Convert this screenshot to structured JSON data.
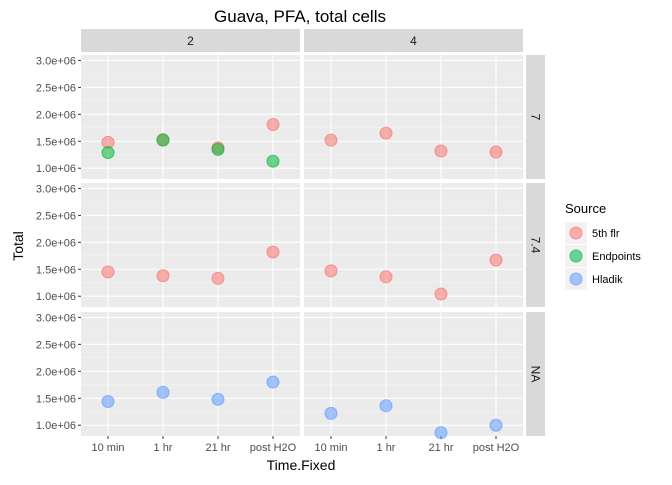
{
  "chart_data": {
    "type": "scatter",
    "title": "Guava, PFA, total cells",
    "xlabel": "Time.Fixed",
    "ylabel": "Total",
    "categories": [
      "10 min",
      "1 hr",
      "21 hr",
      "post H2O"
    ],
    "y_ticks": [
      1000000,
      1500000,
      2000000,
      2500000,
      3000000
    ],
    "y_tick_labels": [
      "1.0e+06",
      "1.5e+06",
      "2.0e+06",
      "2.5e+06",
      "3.0e+06"
    ],
    "ylim": [
      800000,
      3100000
    ],
    "facet_cols": [
      "2",
      "4"
    ],
    "facet_rows": [
      "7",
      "7.4",
      "NA"
    ],
    "legend": {
      "title": "Source",
      "position": "right",
      "items": [
        {
          "name": "5th flr",
          "color": "#F8766D"
        },
        {
          "name": "Endpoints",
          "color": "#00BA38"
        },
        {
          "name": "Hladik",
          "color": "#619CFF"
        }
      ]
    },
    "grid": true,
    "series": [
      {
        "name": "5th flr",
        "color": "#F8766D",
        "points": [
          {
            "col": "2",
            "row": "7",
            "x": "10 min",
            "y": 1480000
          },
          {
            "col": "2",
            "row": "7",
            "x": "1 hr",
            "y": 1530000
          },
          {
            "col": "2",
            "row": "7",
            "x": "21 hr",
            "y": 1380000
          },
          {
            "col": "2",
            "row": "7",
            "x": "post H2O",
            "y": 1810000
          },
          {
            "col": "4",
            "row": "7",
            "x": "10 min",
            "y": 1520000
          },
          {
            "col": "4",
            "row": "7",
            "x": "1 hr",
            "y": 1650000
          },
          {
            "col": "4",
            "row": "7",
            "x": "21 hr",
            "y": 1320000
          },
          {
            "col": "4",
            "row": "7",
            "x": "post H2O",
            "y": 1300000
          },
          {
            "col": "2",
            "row": "7.4",
            "x": "10 min",
            "y": 1450000
          },
          {
            "col": "2",
            "row": "7.4",
            "x": "1 hr",
            "y": 1380000
          },
          {
            "col": "2",
            "row": "7.4",
            "x": "21 hr",
            "y": 1330000
          },
          {
            "col": "2",
            "row": "7.4",
            "x": "post H2O",
            "y": 1820000
          },
          {
            "col": "4",
            "row": "7.4",
            "x": "10 min",
            "y": 1470000
          },
          {
            "col": "4",
            "row": "7.4",
            "x": "1 hr",
            "y": 1360000
          },
          {
            "col": "4",
            "row": "7.4",
            "x": "21 hr",
            "y": 1040000
          },
          {
            "col": "4",
            "row": "7.4",
            "x": "post H2O",
            "y": 1670000
          }
        ]
      },
      {
        "name": "Endpoints",
        "color": "#00BA38",
        "points": [
          {
            "col": "2",
            "row": "7",
            "x": "10 min",
            "y": 1290000
          },
          {
            "col": "2",
            "row": "7",
            "x": "1 hr",
            "y": 1520000
          },
          {
            "col": "2",
            "row": "7",
            "x": "21 hr",
            "y": 1350000
          },
          {
            "col": "2",
            "row": "7",
            "x": "post H2O",
            "y": 1130000
          }
        ]
      },
      {
        "name": "Hladik",
        "color": "#619CFF",
        "points": [
          {
            "col": "2",
            "row": "NA",
            "x": "10 min",
            "y": 1440000
          },
          {
            "col": "2",
            "row": "NA",
            "x": "1 hr",
            "y": 1610000
          },
          {
            "col": "2",
            "row": "NA",
            "x": "21 hr",
            "y": 1480000
          },
          {
            "col": "2",
            "row": "NA",
            "x": "post H2O",
            "y": 1800000
          },
          {
            "col": "4",
            "row": "NA",
            "x": "10 min",
            "y": 1220000
          },
          {
            "col": "4",
            "row": "NA",
            "x": "1 hr",
            "y": 1360000
          },
          {
            "col": "4",
            "row": "NA",
            "x": "21 hr",
            "y": 860000
          },
          {
            "col": "4",
            "row": "NA",
            "x": "post H2O",
            "y": 1000000
          }
        ]
      }
    ]
  }
}
